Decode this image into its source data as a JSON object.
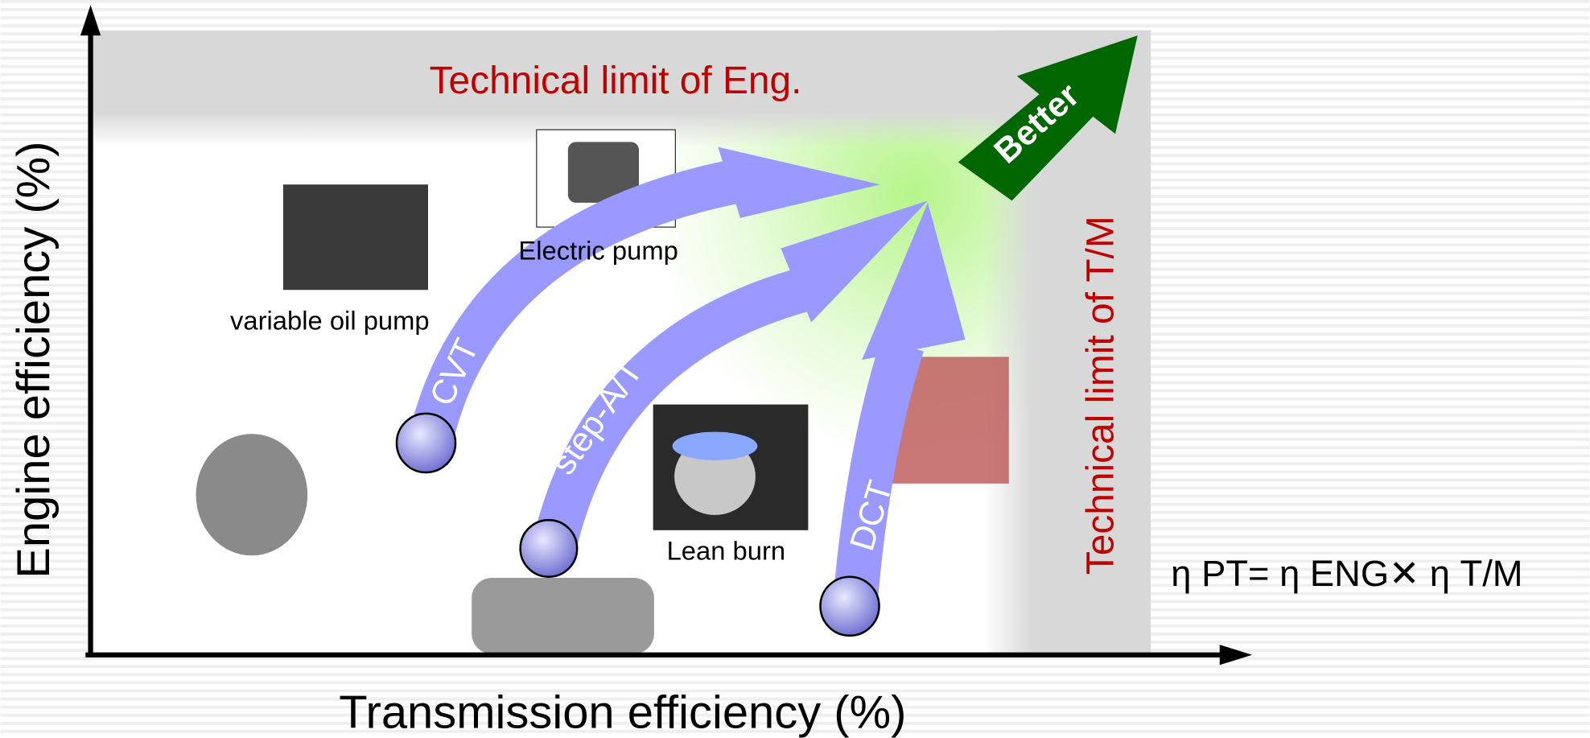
{
  "axes": {
    "y_label": "Engine efficiency (%)",
    "x_label": "Transmission efficiency (%)"
  },
  "limits": {
    "engine": "Technical limit of Eng.",
    "transmission": "Technical limit of T/M"
  },
  "better": "Better",
  "paths": [
    {
      "label": "CVT"
    },
    {
      "label": "step-A/T"
    },
    {
      "label": "DCT"
    }
  ],
  "components": [
    {
      "label": "Electric pump"
    },
    {
      "label": "variable oil pump"
    },
    {
      "label": "Lean burn"
    }
  ],
  "formula": "η PT= η ENG✕ η T/M"
}
